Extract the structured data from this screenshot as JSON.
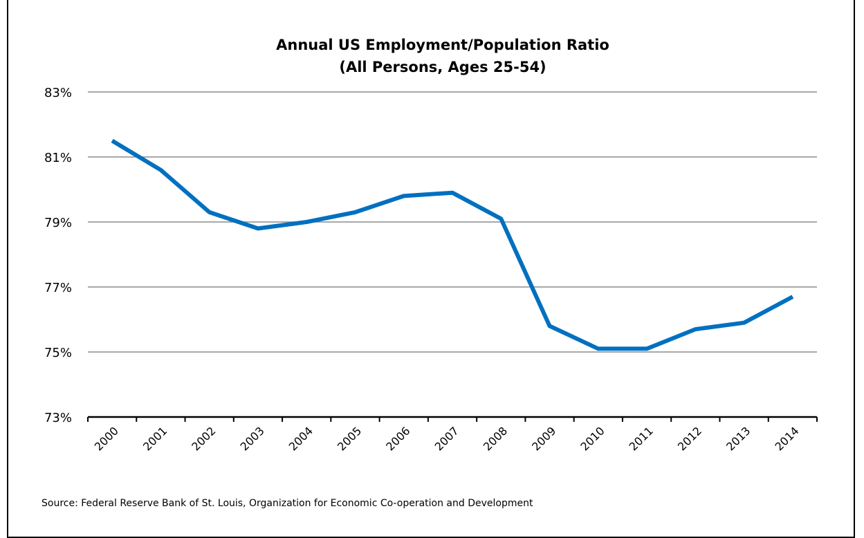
{
  "chart_data": {
    "type": "line",
    "title": "Annual US Employment/Population Ratio",
    "subtitle": "(All Persons, Ages 25-54)",
    "xlabel": "",
    "ylabel": "",
    "x": [
      "2000",
      "2001",
      "2002",
      "2003",
      "2004",
      "2005",
      "2006",
      "2007",
      "2008",
      "2009",
      "2010",
      "2011",
      "2012",
      "2013",
      "2014"
    ],
    "series": [
      {
        "values": [
          81.5,
          80.6,
          79.3,
          78.8,
          79.0,
          79.3,
          79.8,
          79.9,
          79.1,
          75.8,
          75.1,
          75.1,
          75.7,
          75.9,
          76.7
        ],
        "color": "#0070C0"
      }
    ],
    "yticks": [
      "73%",
      "75%",
      "77%",
      "79%",
      "81%",
      "83%"
    ],
    "ylim": [
      73,
      83
    ],
    "grid": true,
    "legend": "none"
  },
  "source": "Source: Federal Reserve Bank of St. Louis, Organization for Economic Co-operation and Development"
}
